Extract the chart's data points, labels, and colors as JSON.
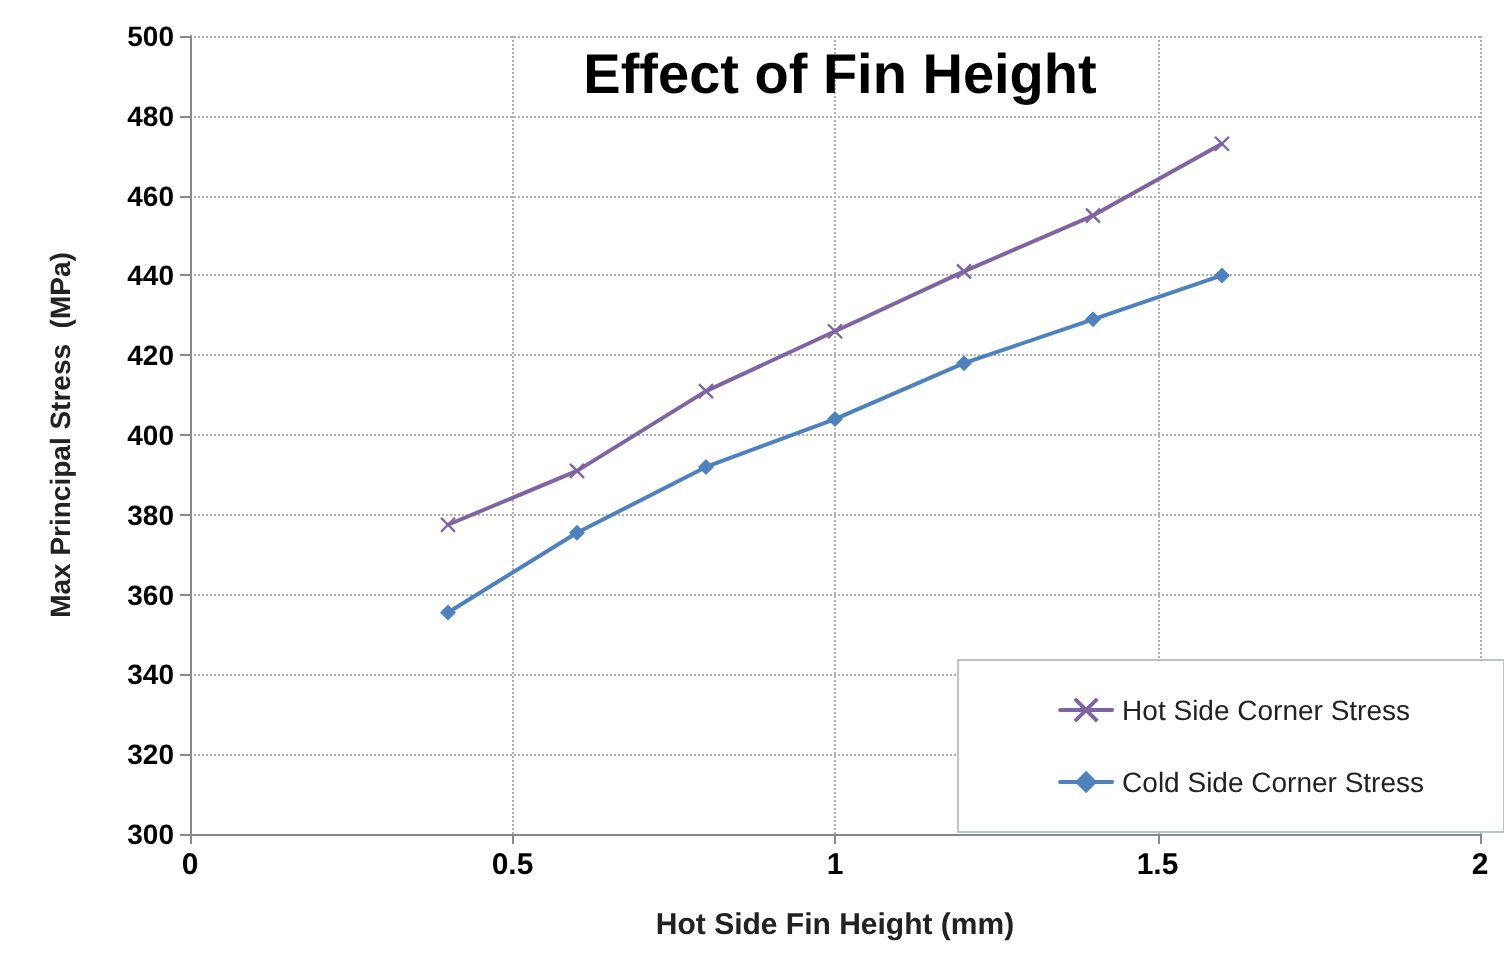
{
  "chart_data": {
    "type": "line",
    "title": "Effect of Fin Height",
    "xlabel": "Hot Side Fin Height (mm)",
    "ylabel": "Max Principal Stress  (MPa)",
    "x": [
      0.4,
      0.6,
      0.8,
      1.0,
      1.2,
      1.4,
      1.6
    ],
    "series": [
      {
        "name": "Hot Side Corner Stress",
        "color": "#8064a2",
        "marker": "cross",
        "values": [
          377.5,
          391,
          411,
          426,
          441,
          455,
          473
        ]
      },
      {
        "name": "Cold Side Corner Stress",
        "color": "#4f81bd",
        "marker": "diamond",
        "values": [
          355.5,
          375.5,
          392,
          404,
          418,
          429,
          440
        ]
      }
    ],
    "xlim": [
      0,
      2
    ],
    "xticks": [
      0,
      0.5,
      1,
      1.5,
      2
    ],
    "ylim": [
      300,
      500
    ],
    "yticks": [
      300,
      320,
      340,
      360,
      380,
      400,
      420,
      440,
      460,
      480,
      500
    ],
    "grid": true,
    "legend": "bottom right",
    "line_style": "solid"
  }
}
